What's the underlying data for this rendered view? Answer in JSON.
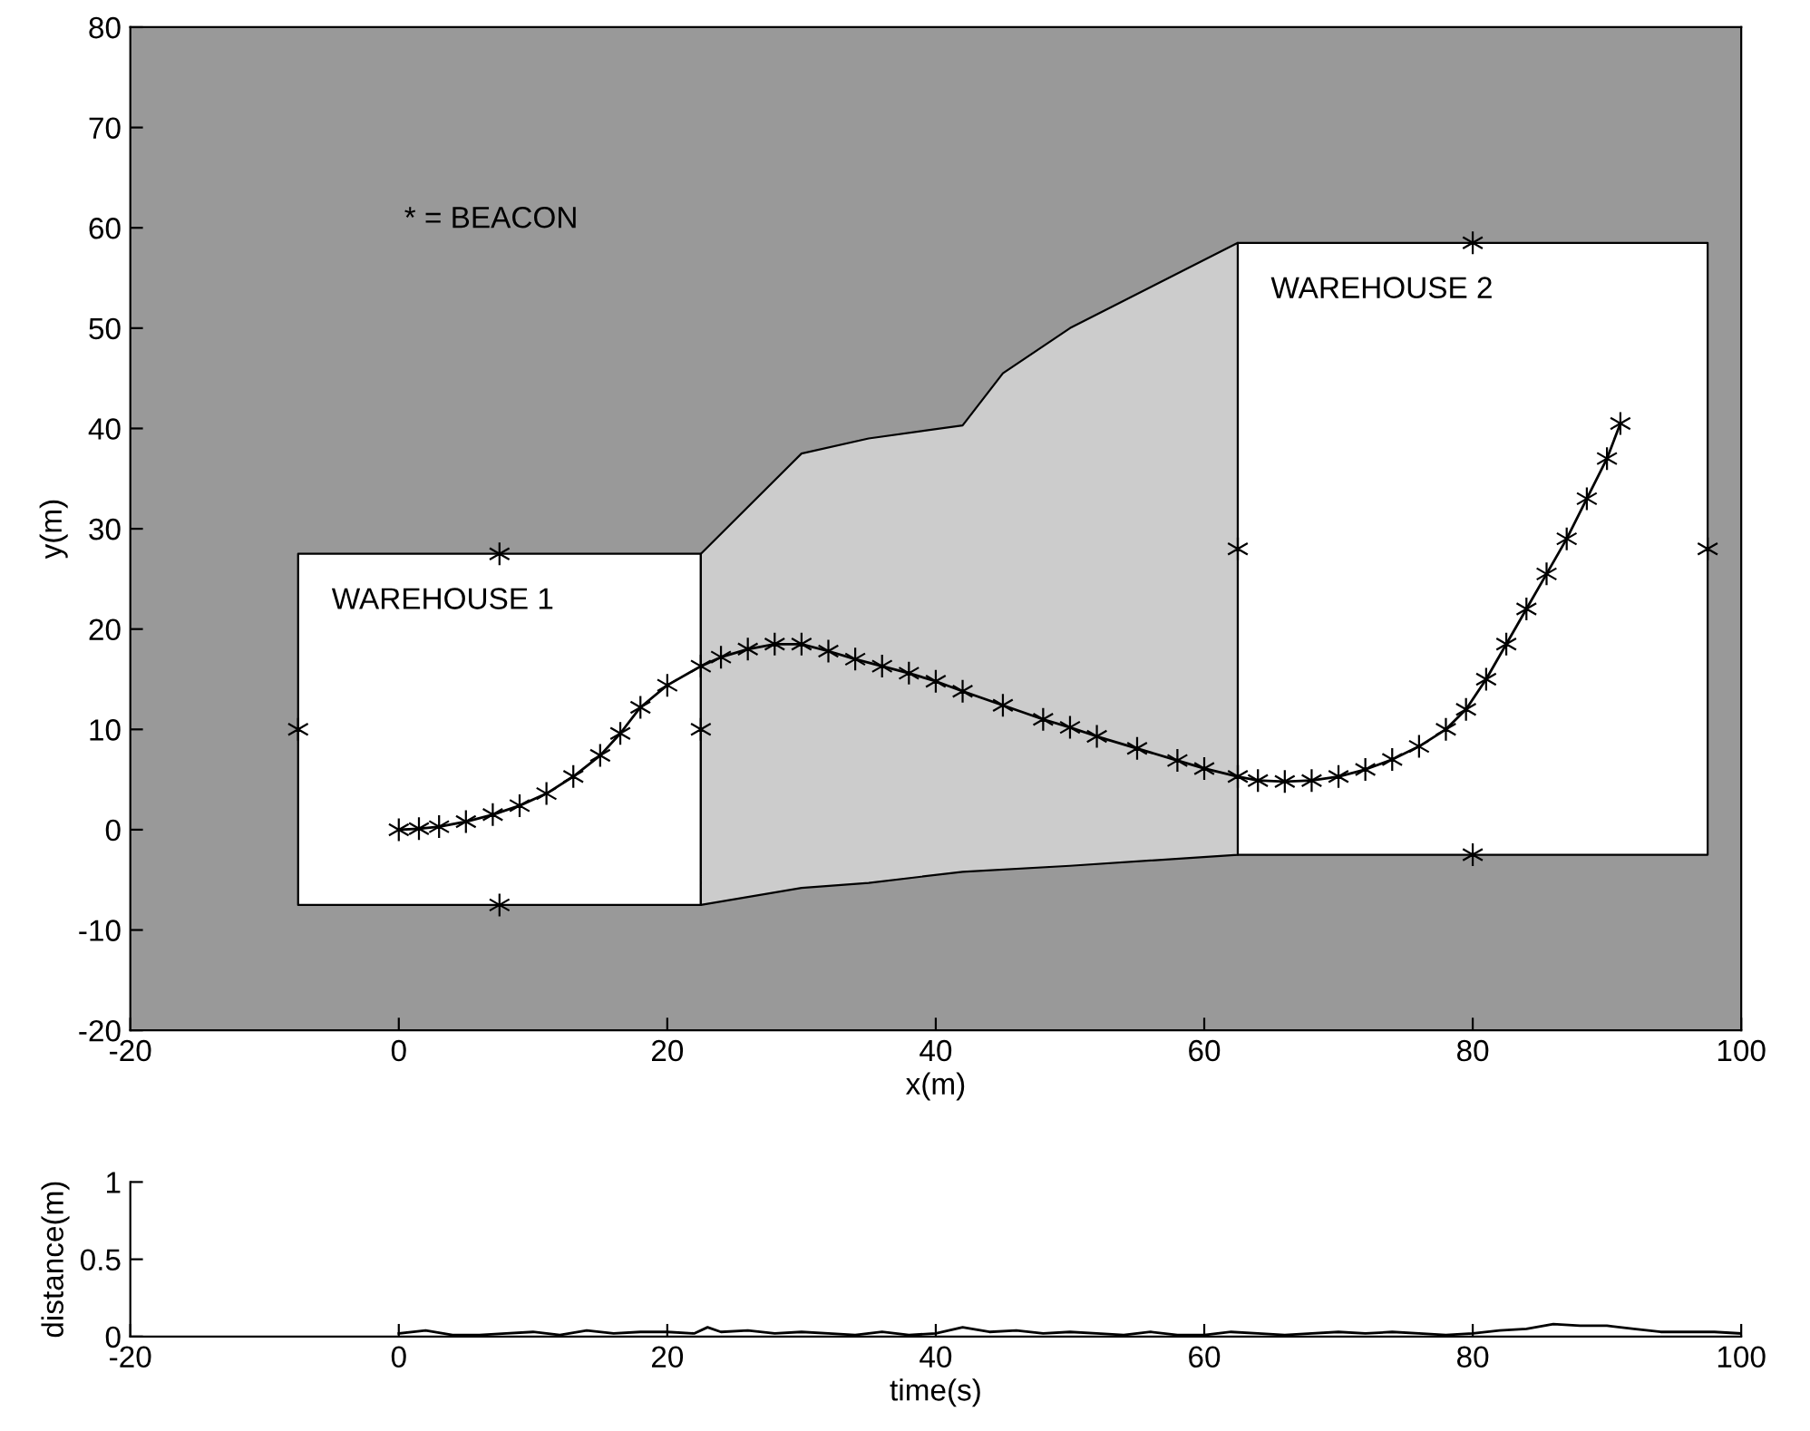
{
  "chart_data": [
    {
      "type": "line",
      "xlabel": "x(m)",
      "ylabel": "y(m)",
      "xlim": [
        -20,
        100
      ],
      "ylim": [
        -20,
        80
      ],
      "xticks": [
        -20,
        0,
        20,
        40,
        60,
        80,
        100
      ],
      "yticks": [
        -20,
        -10,
        0,
        10,
        20,
        30,
        40,
        50,
        60,
        70,
        80
      ],
      "grid": false,
      "legend": false,
      "annotations": [
        "* = BEACON",
        "WAREHOUSE 1",
        "WAREHOUSE 2"
      ],
      "series": [
        {
          "type": "area",
          "color": "#ffffff",
          "x": [
            -7.5,
            22.5,
            22.5,
            -7.5,
            -7.5
          ],
          "values": [
            -7.5,
            -7.5,
            27.5,
            27.5,
            -7.5
          ]
        },
        {
          "type": "area",
          "color": "#cccccc",
          "x": [
            22.5,
            30,
            35,
            42,
            45,
            50,
            62.5,
            62.5,
            50,
            42,
            35,
            30,
            22.5,
            22.5
          ],
          "values": [
            27.5,
            37.5,
            39,
            40.3,
            45.5,
            50,
            58.5,
            -2.5,
            -3.6,
            -4.2,
            -5.3,
            -5.8,
            -7.5,
            27.5
          ]
        },
        {
          "type": "area",
          "color": "#ffffff",
          "x": [
            62.5,
            97.5,
            97.5,
            62.5,
            62.5
          ],
          "values": [
            -2.5,
            -2.5,
            58.5,
            58.5,
            -2.5
          ]
        },
        {
          "type": "line",
          "color": "#000000",
          "marker": "cross",
          "x": [
            0,
            1.5,
            3,
            5,
            7,
            9,
            11,
            13,
            15,
            16.5,
            18,
            20,
            22.5,
            24,
            26,
            28,
            30,
            32,
            34,
            36,
            38,
            40,
            42,
            45,
            48,
            50,
            52,
            55,
            58,
            60,
            62.5,
            64,
            66,
            68,
            70,
            72,
            74,
            76,
            78,
            79.5,
            81,
            82.5,
            84,
            85.5,
            87,
            88.5,
            90,
            91
          ],
          "values": [
            0,
            0.1,
            0.3,
            0.8,
            1.5,
            2.4,
            3.6,
            5.3,
            7.4,
            9.6,
            12.2,
            14.4,
            16.3,
            17.2,
            18,
            18.5,
            18.5,
            17.8,
            17,
            16.3,
            15.6,
            14.8,
            13.8,
            12.4,
            11,
            10.2,
            9.3,
            8.1,
            6.9,
            6.1,
            5.3,
            4.9,
            4.8,
            4.9,
            5.3,
            6,
            7,
            8.3,
            10,
            12,
            15,
            18.5,
            22,
            25.5,
            29,
            33,
            37,
            40.5
          ]
        },
        {
          "type": "scatter",
          "color": "#000000",
          "marker": "cross",
          "x": [
            -7.5,
            7.5,
            7.5,
            22.5,
            62.5,
            80,
            80,
            97.5
          ],
          "values": [
            10,
            27.5,
            -7.5,
            10,
            28,
            58.5,
            -2.5,
            28
          ]
        }
      ]
    },
    {
      "type": "line",
      "xlabel": "time(s)",
      "ylabel": "distance(m)",
      "xlim": [
        -20,
        100
      ],
      "ylim": [
        0,
        1
      ],
      "xticks": [
        -20,
        0,
        20,
        40,
        60,
        80,
        100
      ],
      "yticks": [
        0,
        0.5,
        1
      ],
      "grid": false,
      "legend": false,
      "series": [
        {
          "color": "#000000",
          "marker": "none",
          "x": [
            0,
            2,
            4,
            6,
            8,
            10,
            12,
            14,
            16,
            18,
            20,
            22,
            23,
            24,
            26,
            28,
            30,
            32,
            34,
            36,
            38,
            40,
            42,
            44,
            46,
            48,
            50,
            52,
            54,
            56,
            58,
            60,
            62,
            64,
            66,
            68,
            70,
            72,
            74,
            76,
            78,
            80,
            82,
            84,
            86,
            88,
            90,
            92,
            94,
            96,
            98,
            100
          ],
          "values": [
            0.02,
            0.04,
            0.01,
            0.01,
            0.02,
            0.03,
            0.01,
            0.04,
            0.02,
            0.03,
            0.03,
            0.02,
            0.06,
            0.03,
            0.04,
            0.02,
            0.03,
            0.02,
            0.01,
            0.03,
            0.01,
            0.02,
            0.06,
            0.03,
            0.04,
            0.02,
            0.03,
            0.02,
            0.01,
            0.03,
            0.01,
            0.01,
            0.03,
            0.02,
            0.01,
            0.02,
            0.03,
            0.02,
            0.03,
            0.02,
            0.01,
            0.02,
            0.04,
            0.05,
            0.08,
            0.07,
            0.07,
            0.05,
            0.03,
            0.03,
            0.03,
            0.02
          ]
        }
      ]
    }
  ]
}
